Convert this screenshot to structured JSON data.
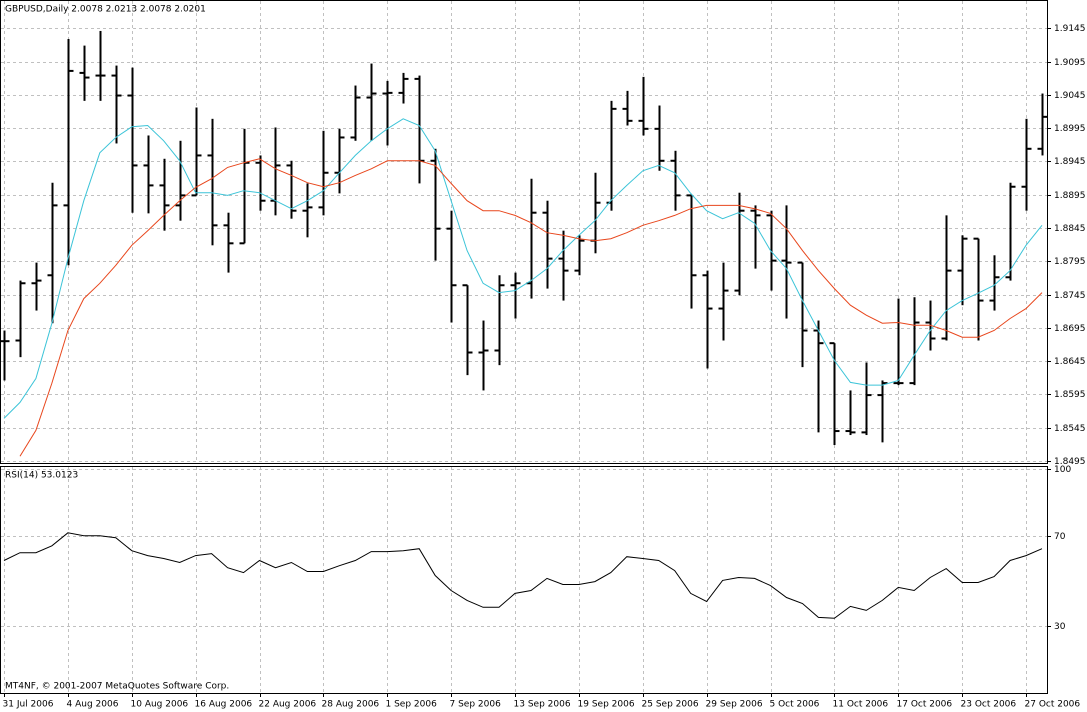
{
  "chart_data": [
    {
      "type": "ohlc",
      "title": "GBPUSD,Daily  2.0078 2.0213 2.0078 2.0201",
      "categories": [
        "31 Jul 2006",
        null,
        null,
        null,
        "4 Aug 2006",
        null,
        null,
        null,
        "10 Aug 2006",
        null,
        null,
        null,
        "16 Aug 2006",
        null,
        null,
        null,
        "22 Aug 2006",
        null,
        null,
        null,
        "28 Aug 2006",
        null,
        null,
        null,
        "1 Sep 2006",
        null,
        null,
        null,
        "7 Sep 2006",
        null,
        null,
        null,
        "13 Sep 2006",
        null,
        null,
        null,
        "19 Sep 2006",
        null,
        null,
        null,
        "25 Sep 2006",
        null,
        null,
        null,
        "29 Sep 2006",
        null,
        null,
        null,
        "5 Oct 2006",
        null,
        null,
        null,
        "11 Oct 2006",
        null,
        null,
        null,
        "17 Oct 2006",
        null,
        null,
        null,
        "23 Oct 2006",
        null,
        null,
        null,
        "27 Oct 2006",
        null
      ],
      "open": [
        1.8675,
        1.8676,
        1.8762,
        1.8774,
        1.8879,
        1.9078,
        1.9074,
        1.9074,
        1.9044,
        1.8939,
        1.8909,
        1.8879,
        1.8894,
        1.8954,
        1.8849,
        1.8822,
        1.8943,
        1.8886,
        1.8939,
        1.8871,
        1.8876,
        1.8928,
        1.8981,
        1.9041,
        1.9047,
        1.9048,
        1.9069,
        1.8946,
        1.8844,
        1.8759,
        1.8658,
        1.8661,
        1.8759,
        1.8762,
        1.8868,
        1.8799,
        1.8781,
        1.8826,
        1.8883,
        1.9024,
        1.9006,
        1.8994,
        1.8946,
        1.8894,
        1.8774,
        1.8724,
        1.8751,
        1.8871,
        1.8864,
        1.8796,
        1.8793,
        1.8691,
        1.8672,
        1.854,
        1.8538,
        1.8594,
        1.8612,
        1.8612,
        1.8703,
        1.8679,
        1.8781,
        1.8829,
        1.8736,
        1.8771,
        1.8907,
        1.8964
      ],
      "high": [
        1.8691,
        1.8766,
        1.8793,
        1.8913,
        1.9129,
        1.9119,
        1.9141,
        1.9089,
        1.9086,
        1.8984,
        1.8949,
        1.8976,
        1.9026,
        1.9009,
        1.8868,
        1.8994,
        1.8954,
        1.8996,
        1.8946,
        1.8912,
        1.8991,
        1.8994,
        1.9059,
        1.9092,
        1.9066,
        1.9078,
        1.9074,
        1.8964,
        1.8871,
        1.8759,
        1.8706,
        1.8774,
        1.8778,
        1.8919,
        1.8886,
        1.8841,
        1.8834,
        1.8928,
        1.9036,
        1.9051,
        1.9072,
        1.9029,
        1.8961,
        1.8894,
        1.8781,
        1.8793,
        1.8898,
        1.8879,
        1.8871,
        1.8879,
        1.8793,
        1.8706,
        1.8672,
        1.8601,
        1.8643,
        1.8616,
        1.8739,
        1.8741,
        1.8736,
        1.8864,
        1.8834,
        1.8829,
        1.8804,
        1.8913,
        1.9009,
        1.9047
      ],
      "low": [
        1.8616,
        1.8651,
        1.8721,
        1.8702,
        1.8789,
        1.9036,
        1.9036,
        1.8972,
        1.8868,
        1.8867,
        1.8841,
        1.8856,
        1.8894,
        1.8819,
        1.8778,
        1.8822,
        1.8871,
        1.8864,
        1.8859,
        1.8831,
        1.8864,
        1.8897,
        1.8976,
        1.8976,
        1.8969,
        1.9032,
        1.8912,
        1.8796,
        1.8703,
        1.8624,
        1.8601,
        1.8639,
        1.8709,
        1.8739,
        1.8754,
        1.8736,
        1.8774,
        1.8807,
        1.8871,
        1.8999,
        1.8984,
        1.8931,
        1.8871,
        1.8724,
        1.8634,
        1.8676,
        1.8744,
        1.8784,
        1.8751,
        1.8709,
        1.8636,
        1.8538,
        1.8519,
        1.8534,
        1.8534,
        1.8523,
        1.8609,
        1.8609,
        1.8661,
        1.8676,
        1.8729,
        1.8676,
        1.8721,
        1.8766,
        1.8871,
        1.8954
      ],
      "close": [
        1.8675,
        1.8762,
        1.8766,
        1.8879,
        1.9081,
        1.9071,
        1.9074,
        1.9044,
        1.8939,
        1.8909,
        1.8879,
        1.8894,
        1.8954,
        1.8849,
        1.8822,
        1.8943,
        1.8886,
        1.8939,
        1.8871,
        1.8876,
        1.8928,
        1.8981,
        1.9041,
        1.9047,
        1.9048,
        1.9069,
        1.8946,
        1.8844,
        1.8759,
        1.8658,
        1.8661,
        1.8759,
        1.8762,
        1.8868,
        1.8799,
        1.8781,
        1.8826,
        1.8883,
        1.9024,
        1.9006,
        1.8994,
        1.8946,
        1.8894,
        1.8774,
        1.8724,
        1.8751,
        1.8871,
        1.8864,
        1.8796,
        1.8793,
        1.8691,
        1.8672,
        1.854,
        1.8538,
        1.8594,
        1.8612,
        1.8612,
        1.8703,
        1.8679,
        1.8781,
        1.8829,
        1.8736,
        1.8771,
        1.8907,
        1.8964,
        1.9012
      ],
      "color": "#000000",
      "overlays": [
        {
          "color": "#3cc4d8",
          "values": [
            1.8559,
            1.8583,
            1.8619,
            1.8702,
            1.8799,
            1.8886,
            1.8958,
            1.8981,
            1.8997,
            1.8999,
            1.8976,
            1.8946,
            1.8898,
            1.8898,
            1.8894,
            1.8901,
            1.8898,
            1.8886,
            1.8874,
            1.8886,
            1.8901,
            1.8928,
            1.8954,
            1.8976,
            1.8994,
            1.9009,
            1.8999,
            1.8961,
            1.8886,
            1.8811,
            1.8762,
            1.8748,
            1.8751,
            1.8766,
            1.8784,
            1.8811,
            1.8834,
            1.8856,
            1.8886,
            1.8909,
            1.8931,
            1.8939,
            1.8928,
            1.8897,
            1.8871,
            1.8859,
            1.8868,
            1.8852,
            1.8811,
            1.8784,
            1.8736,
            1.8691,
            1.8646,
            1.8613,
            1.8609,
            1.8609,
            1.8616,
            1.8654,
            1.8691,
            1.8721,
            1.8736,
            1.8747,
            1.8759,
            1.8781,
            1.8819,
            1.8849
          ]
        },
        {
          "color": "#e8461c",
          "values": [
            null,
            1.8502,
            1.8541,
            1.8612,
            1.8691,
            1.8739,
            1.8762,
            1.8789,
            1.8819,
            1.8841,
            1.8864,
            1.8886,
            1.8906,
            1.8919,
            1.8936,
            1.8943,
            1.8949,
            1.8934,
            1.8924,
            1.8913,
            1.8907,
            1.8913,
            1.8924,
            1.8934,
            1.8946,
            1.8946,
            1.8946,
            1.8939,
            1.8912,
            1.8886,
            1.8871,
            1.8871,
            1.8864,
            1.8853,
            1.8838,
            1.8834,
            1.8829,
            1.8826,
            1.8829,
            1.8838,
            1.8849,
            1.8856,
            1.8864,
            1.8874,
            1.8879,
            1.8879,
            1.8879,
            1.8874,
            1.8867,
            1.8844,
            1.8811,
            1.8781,
            1.8754,
            1.8729,
            1.8714,
            1.8702,
            1.8703,
            1.8699,
            1.8699,
            1.8691,
            1.8681,
            1.8681,
            1.8691,
            1.8709,
            1.8724,
            1.8748
          ]
        }
      ],
      "ylim": [
        1.8492,
        1.9186
      ],
      "yticks": [
        1.9145,
        1.9095,
        1.9045,
        1.8995,
        1.8945,
        1.8895,
        1.8845,
        1.8795,
        1.8745,
        1.8695,
        1.8645,
        1.8595,
        1.8545,
        1.8495
      ],
      "grid": true
    },
    {
      "type": "line",
      "title": "RSI(14) 53.0123",
      "footer": "MT4NF, © 2001-2007 MetaQuotes Software Corp.",
      "values": [
        59.2,
        62.7,
        62.7,
        65.8,
        71.6,
        70.3,
        70.3,
        69.4,
        63.6,
        61.4,
        60.1,
        58.3,
        61.4,
        62.3,
        56.0,
        53.8,
        59.2,
        56.0,
        58.3,
        54.3,
        54.3,
        56.9,
        59.2,
        63.2,
        63.2,
        63.6,
        64.5,
        52.5,
        45.8,
        41.4,
        38.3,
        38.3,
        44.5,
        45.8,
        51.2,
        48.5,
        48.5,
        49.8,
        53.8,
        60.9,
        60.1,
        59.2,
        54.7,
        44.5,
        40.9,
        50.3,
        51.6,
        51.2,
        48.0,
        42.7,
        40.0,
        33.8,
        33.4,
        38.7,
        36.9,
        41.4,
        47.2,
        45.8,
        51.6,
        55.6,
        49.4,
        49.4,
        52.0,
        59.2,
        61.4,
        64.5
      ],
      "color": "#000000",
      "ylim": [
        0,
        101
      ],
      "yticks": [
        100,
        70,
        30
      ],
      "grid": true
    }
  ]
}
